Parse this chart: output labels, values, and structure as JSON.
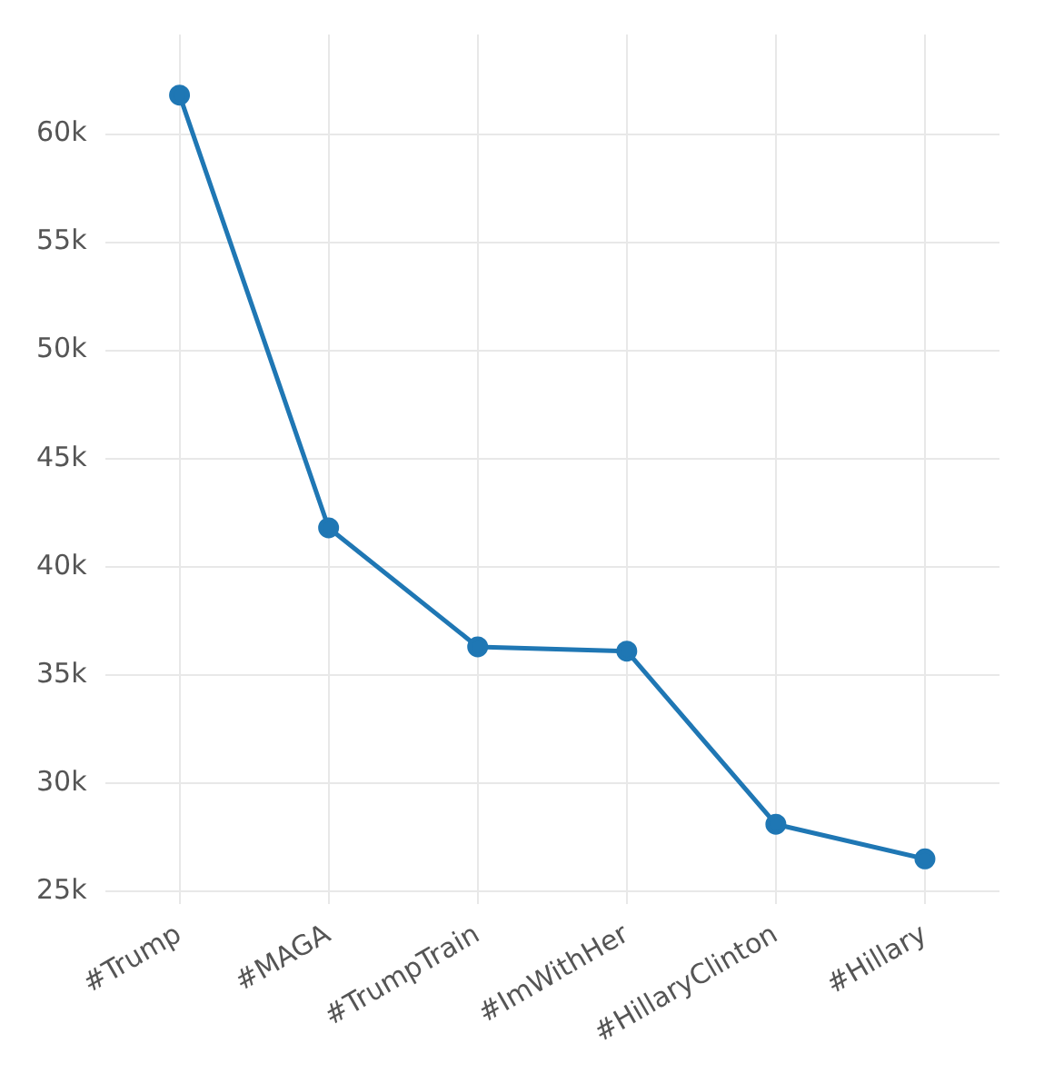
{
  "chart_data": {
    "type": "line",
    "categories": [
      "#Trump",
      "#MAGA",
      "#TrumpTrain",
      "#ImWithHer",
      "#HillaryClinton",
      "#Hillary"
    ],
    "series": [
      {
        "color": "#1f77b4",
        "values": [
          61800,
          41800,
          36300,
          36100,
          28100,
          26500
        ]
      }
    ],
    "ylim": [
      24400,
      64600
    ],
    "yticks": [
      {
        "value": 25000,
        "label": "25k"
      },
      {
        "value": 30000,
        "label": "30k"
      },
      {
        "value": 35000,
        "label": "35k"
      },
      {
        "value": 40000,
        "label": "40k"
      },
      {
        "value": 45000,
        "label": "45k"
      },
      {
        "value": 50000,
        "label": "50k"
      },
      {
        "value": 55000,
        "label": "55k"
      },
      {
        "value": 60000,
        "label": "60k"
      }
    ],
    "grid": true,
    "legend": false,
    "marker": "circle",
    "line_style": "solid"
  }
}
